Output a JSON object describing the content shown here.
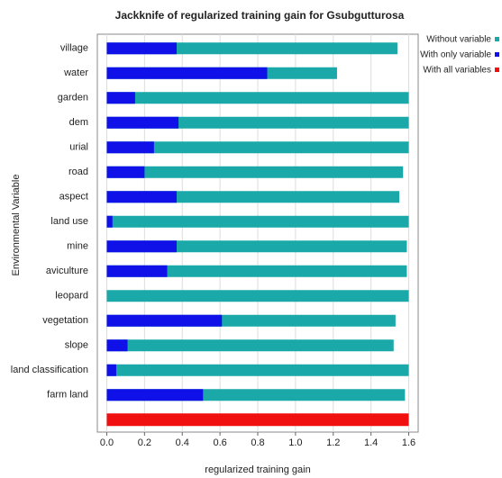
{
  "chart_data": {
    "type": "barh",
    "title": "Jackknife of regularized training gain for Gsubgutturosa",
    "xlabel": "regularized training gain",
    "ylabel": "Environmental Variable",
    "categories": [
      "village",
      "water",
      "garden",
      "dem",
      "urial",
      "road",
      "aspect",
      "land use",
      "mine",
      "aviculture",
      "leopard",
      "vegetation",
      "slope",
      "land classification",
      "farm land",
      null
    ],
    "series": [
      {
        "name": "Without variable",
        "color": "#1aa8a8",
        "values": [
          1.54,
          1.22,
          1.6,
          1.6,
          1.6,
          1.57,
          1.55,
          1.6,
          1.59,
          1.59,
          1.6,
          1.53,
          1.52,
          1.6,
          1.58,
          null
        ]
      },
      {
        "name": "With only variable",
        "color": "#1010e8",
        "values": [
          0.37,
          0.85,
          0.15,
          0.38,
          0.25,
          0.2,
          0.37,
          0.03,
          0.37,
          0.32,
          0,
          0.61,
          0.11,
          0.05,
          0.51,
          null
        ]
      },
      {
        "name": "With all variables",
        "color": "#f01010",
        "values": [
          null,
          null,
          null,
          null,
          null,
          null,
          null,
          null,
          null,
          null,
          null,
          null,
          null,
          null,
          null,
          1.6
        ]
      }
    ],
    "xlim": [
      -0.05,
      1.65
    ],
    "xticks": [
      {
        "value": 0,
        "label": "0.0"
      },
      0.2,
      0.4,
      0.6,
      0.8,
      {
        "value": 1,
        "label": "1.0"
      },
      1.2,
      1.4,
      1.6
    ],
    "grid": true,
    "legend": "outside-right"
  }
}
